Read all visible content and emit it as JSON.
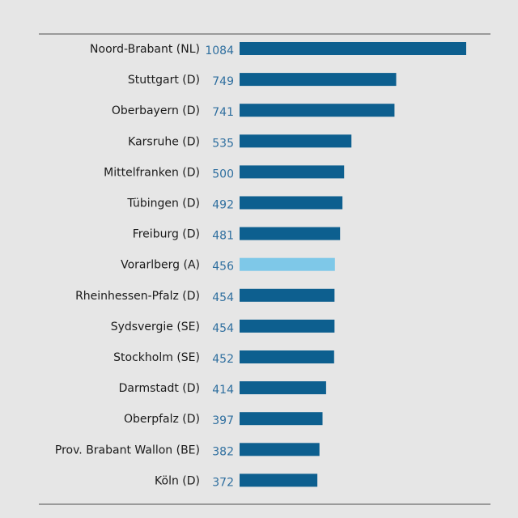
{
  "chart_data": {
    "type": "bar",
    "orientation": "horizontal",
    "categories": [
      "Noord-Brabant (NL)",
      "Stuttgart (D)",
      "Oberbayern (D)",
      "Karsruhe (D)",
      "Mittelfranken (D)",
      "Tübingen (D)",
      "Freiburg (D)",
      "Vorarlberg (A)",
      "Rheinhessen-Pfalz (D)",
      "Sydsvergie (SE)",
      "Stockholm (SE)",
      "Darmstadt (D)",
      "Oberpfalz (D)",
      "Prov. Brabant Wallon (BE)",
      "Köln (D)"
    ],
    "values": [
      1084,
      749,
      741,
      535,
      500,
      492,
      481,
      456,
      454,
      454,
      452,
      414,
      397,
      382,
      372
    ],
    "highlight_index": 7,
    "data_labels": true,
    "grid": false,
    "colors": {
      "bar": "#0d5f8f",
      "highlight": "#7ec8e8",
      "value_text": "#2f6f9f",
      "category_text": "#1a1a1a",
      "background": "#e6e6e6",
      "rule": "#4d4d4d"
    }
  }
}
